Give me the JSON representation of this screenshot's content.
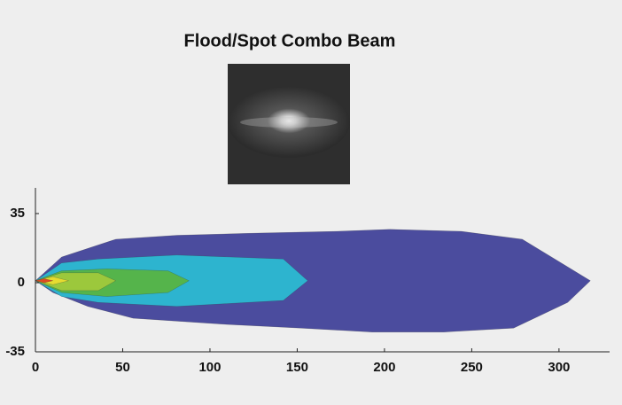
{
  "chart_data": {
    "type": "contour",
    "title": "Flood/Spot Combo Beam",
    "xlim": [
      0,
      329
    ],
    "ylim": [
      -35,
      48
    ],
    "xticks": [
      0,
      50,
      100,
      150,
      200,
      250,
      300
    ],
    "yticks": [
      -35,
      0,
      35
    ],
    "series": [
      {
        "color": "#4b4c9e",
        "x": [
          0,
          15,
          46,
          81,
          122,
          173,
          203,
          244,
          279,
          305,
          318,
          305,
          274,
          234,
          193,
          152,
          107,
          56,
          30,
          10
        ],
        "y": [
          1,
          13,
          22,
          24,
          25,
          26,
          27,
          26,
          22,
          8,
          1,
          -10,
          -23,
          -25,
          -25,
          -23,
          -21,
          -18,
          -12,
          -5
        ]
      },
      {
        "color": "#2db4cf",
        "x": [
          0,
          15,
          36,
          81,
          142,
          156,
          142,
          81,
          36,
          15
        ],
        "y": [
          1,
          10,
          12,
          14,
          12,
          1,
          -9,
          -12,
          -10,
          -7
        ]
      },
      {
        "color": "#55b44b",
        "x": [
          0,
          15,
          41,
          76,
          88,
          76,
          41,
          15
        ],
        "y": [
          1,
          6,
          7,
          6,
          1,
          -5,
          -7,
          -5
        ]
      },
      {
        "color": "#9cc83c",
        "x": [
          0,
          15,
          36,
          46,
          36,
          15
        ],
        "y": [
          1,
          5,
          5,
          1,
          -4,
          -4
        ]
      },
      {
        "color": "#e6dc30",
        "x": [
          0,
          10,
          19,
          10
        ],
        "y": [
          1,
          3,
          1,
          -1
        ]
      },
      {
        "color": "#de4a22",
        "x": [
          0,
          5,
          10,
          5
        ],
        "y": [
          1,
          2,
          1,
          0
        ]
      }
    ]
  }
}
